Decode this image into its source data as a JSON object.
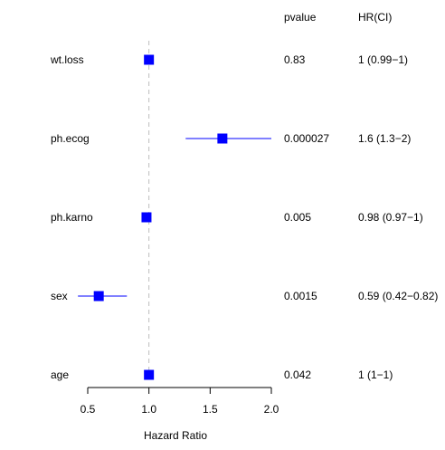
{
  "chart_data": {
    "type": "forest",
    "xlabel": "Hazard Ratio",
    "xlim": [
      0.5,
      2.0
    ],
    "x_ticks": [
      "0.5",
      "1.0",
      "1.5",
      "2.0"
    ],
    "reference_line": 1.0,
    "column_headers": {
      "pvalue": "pvalue",
      "hr": "HR(CI)"
    },
    "point_color": "#0000ff",
    "reference_color": "#bebebe",
    "rows": [
      {
        "label": "wt.loss",
        "hr": 1.0,
        "lower": 0.99,
        "upper": 1.0,
        "pvalue": "0.83",
        "hr_ci": "1 (0.99−1)"
      },
      {
        "label": "ph.ecog",
        "hr": 1.6,
        "lower": 1.3,
        "upper": 2.0,
        "pvalue": "0.000027",
        "hr_ci": "1.6 (1.3−2)"
      },
      {
        "label": "ph.karno",
        "hr": 0.98,
        "lower": 0.97,
        "upper": 1.0,
        "pvalue": "0.005",
        "hr_ci": "0.98 (0.97−1)"
      },
      {
        "label": "sex",
        "hr": 0.59,
        "lower": 0.42,
        "upper": 0.82,
        "pvalue": "0.0015",
        "hr_ci": "0.59 (0.42−0.82)"
      },
      {
        "label": "age",
        "hr": 1.0,
        "lower": 1.0,
        "upper": 1.0,
        "pvalue": "0.042",
        "hr_ci": "1 (1−1)"
      }
    ]
  }
}
